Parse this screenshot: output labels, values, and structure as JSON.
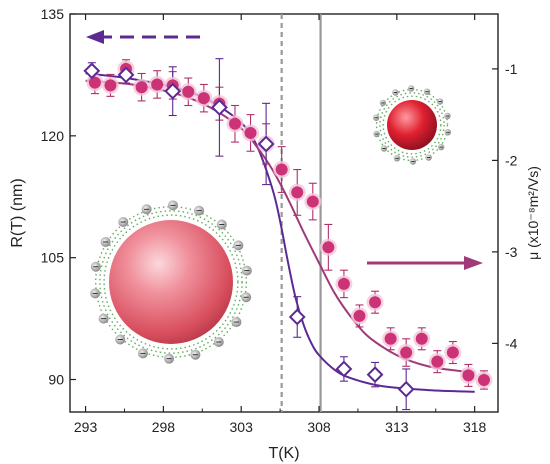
{
  "chart_data": {
    "type": "scatter",
    "xlabel": "T(K)",
    "ylabel_left": "R(T) (nm)",
    "ylabel_right": "μ (x10⁻⁸m²/Vs)",
    "xlim": [
      292,
      319.5
    ],
    "ylim_left": [
      86,
      135
    ],
    "ylim_right": [
      -4.75,
      -0.4
    ],
    "xticks": [
      293,
      298,
      303,
      308,
      313,
      318
    ],
    "yticks_left": [
      90,
      105,
      120,
      135
    ],
    "yticks_right": [
      -1,
      -2,
      -3,
      -4
    ],
    "x_tick_labels": [
      "293",
      "298",
      "303",
      "308",
      "313",
      "318"
    ],
    "y_left_tick_labels": [
      "90",
      "105",
      "120",
      "135"
    ],
    "y_right_tick_labels": [
      "-1",
      "-2",
      "-3",
      "-4"
    ],
    "vlines": [
      {
        "x": 305.6,
        "style": "dashed",
        "color": "#999999"
      },
      {
        "x": 308.1,
        "style": "solid",
        "color": "#999999"
      }
    ],
    "series": [
      {
        "marker": "circle",
        "axis": "right",
        "color": "#cc3377",
        "x": [
          293.6,
          294.6,
          295.6,
          296.6,
          297.6,
          298.6,
          299.6,
          300.6,
          301.6,
          302.6,
          303.6,
          304.6,
          305.6,
          306.6,
          307.6,
          308.6,
          309.6,
          310.6,
          311.6,
          312.6,
          313.6,
          314.6,
          315.6,
          316.6,
          317.6,
          318.6
        ],
        "values": [
          -1.15,
          -1.18,
          -1.0,
          -1.2,
          -1.17,
          -1.18,
          -1.25,
          -1.32,
          -1.38,
          -1.6,
          -1.7,
          -1.82,
          -2.1,
          -2.35,
          -2.45,
          -2.95,
          -3.35,
          -3.7,
          -3.55,
          -3.95,
          -4.1,
          -3.95,
          -4.2,
          -4.1,
          -4.35,
          -4.4
        ],
        "err": [
          0.12,
          0.12,
          0.1,
          0.15,
          0.15,
          0.15,
          0.15,
          0.15,
          0.18,
          0.2,
          0.2,
          0.22,
          0.25,
          0.25,
          0.2,
          0.25,
          0.15,
          0.12,
          0.12,
          0.12,
          0.15,
          0.12,
          0.12,
          0.12,
          0.12,
          0.1
        ]
      },
      {
        "marker": "open-diamond",
        "axis": "left",
        "color": "#5b2a93",
        "x": [
          293.4,
          295.6,
          298.6,
          301.6,
          304.6,
          306.6,
          309.6,
          311.6,
          313.6
        ],
        "values": [
          128.0,
          127.5,
          125.5,
          123.5,
          119.0,
          97.7,
          91.3,
          90.6,
          88.8
        ],
        "err": [
          1.0,
          1.0,
          3.0,
          6.0,
          5.0,
          2.5,
          1.5,
          1.5,
          2.5
        ]
      }
    ],
    "fits": [
      {
        "axis": "left",
        "color": "#5b2a93",
        "x": [
          293,
          296,
          299,
          301,
          303,
          304,
          305,
          305.5,
          306,
          306.5,
          307,
          307.5,
          308,
          309,
          310,
          312,
          315,
          318
        ],
        "values": [
          127.7,
          127.0,
          125.8,
          124.3,
          121.6,
          118.8,
          113.5,
          109.5,
          104.5,
          100.0,
          96.8,
          94.5,
          93.0,
          91.2,
          90.2,
          89.2,
          88.7,
          88.5
        ]
      },
      {
        "axis": "right",
        "color": "#a03a7a",
        "x": [
          293,
          296,
          299,
          301,
          303,
          304,
          305,
          306,
          307,
          308,
          309,
          310,
          311,
          312,
          313,
          314,
          315,
          316,
          318
        ],
        "values": [
          -1.13,
          -1.17,
          -1.28,
          -1.42,
          -1.65,
          -1.85,
          -2.1,
          -2.42,
          -2.78,
          -3.12,
          -3.45,
          -3.7,
          -3.9,
          -4.03,
          -4.13,
          -4.2,
          -4.25,
          -4.28,
          -4.32
        ]
      }
    ],
    "arrows": [
      {
        "direction": "left",
        "axis": "left",
        "style": "dashed",
        "color": "#5b2a93"
      },
      {
        "direction": "right",
        "axis": "right",
        "style": "solid",
        "color": "#a03a7a"
      }
    ]
  }
}
